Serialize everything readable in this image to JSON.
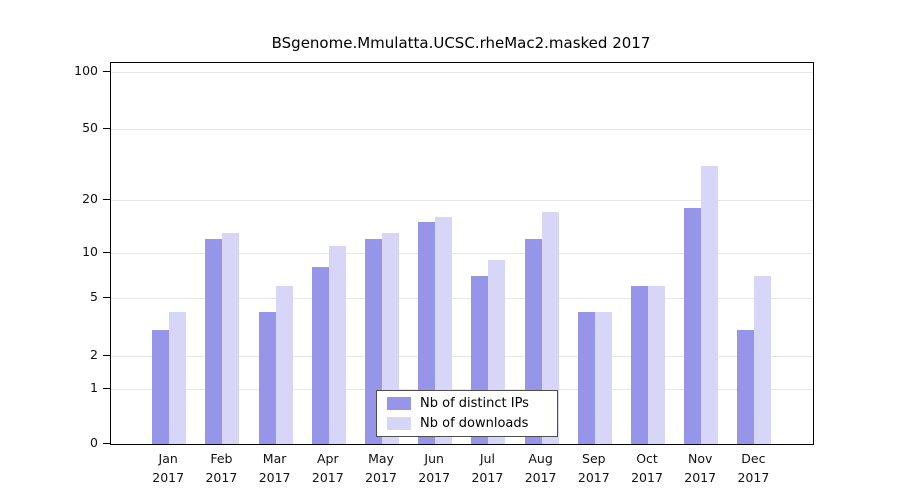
{
  "chart_data": {
    "type": "bar",
    "title": "BSgenome.Mmulatta.UCSC.rheMac2.masked 2017",
    "xlabel": "",
    "ylabel": "",
    "year": "2017",
    "categories": [
      "Jan",
      "Feb",
      "Mar",
      "Apr",
      "May",
      "Jun",
      "Jul",
      "Aug",
      "Sep",
      "Oct",
      "Nov",
      "Dec"
    ],
    "series": [
      {
        "name": "Nb of distinct IPs",
        "color": "#9795ea",
        "values": [
          3,
          12,
          4,
          8,
          12,
          15,
          7,
          12,
          4,
          6,
          18,
          3
        ]
      },
      {
        "name": "Nb of downloads",
        "color": "#d7d6f8",
        "values": [
          4,
          13,
          6,
          11,
          13,
          16,
          9,
          17,
          4,
          6,
          31,
          7
        ]
      }
    ],
    "y_ticks": [
      0,
      1,
      2,
      5,
      10,
      20,
      50,
      100
    ],
    "ylim": [
      0,
      100
    ],
    "y_scale": "log-like with 0 baseline",
    "grid": true,
    "legend_position": "bottom-center"
  },
  "legend": {
    "items": [
      {
        "label": "Nb of distinct IPs"
      },
      {
        "label": "Nb of downloads"
      }
    ]
  }
}
